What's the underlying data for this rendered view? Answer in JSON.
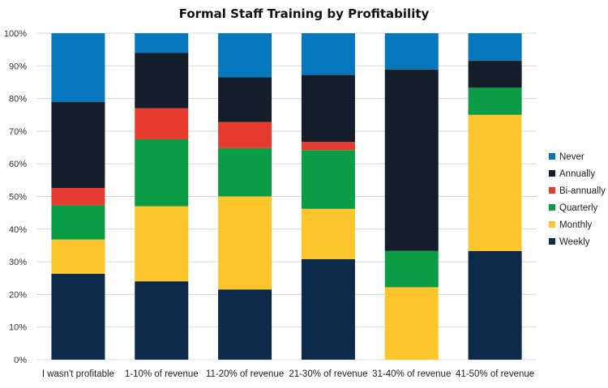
{
  "chart_data": {
    "type": "bar",
    "stacked": true,
    "title": "Formal Staff Training by Profitability",
    "xlabel": "",
    "ylabel": "",
    "ylim": [
      0,
      100
    ],
    "ytick_labels": [
      "0%",
      "10%",
      "20%",
      "30%",
      "40%",
      "50%",
      "60%",
      "70%",
      "80%",
      "90%",
      "100%"
    ],
    "grid": true,
    "legend_position": "right",
    "categories": [
      "I wasn't profitable",
      "1-10% of revenue",
      "11-20% of revenue",
      "21-30% of revenue",
      "31-40% of revenue",
      "41-50% of revenue"
    ],
    "series": [
      {
        "name": "Weekly",
        "color": "#0d2a4a",
        "values": [
          26.3,
          24.0,
          21.5,
          30.8,
          0.0,
          33.3
        ]
      },
      {
        "name": "Monthly",
        "color": "#fcc52c",
        "values": [
          10.5,
          23.0,
          28.5,
          15.4,
          22.2,
          41.7
        ]
      },
      {
        "name": "Quarterly",
        "color": "#0a9d45",
        "values": [
          10.5,
          20.5,
          14.8,
          18.0,
          11.1,
          8.3
        ]
      },
      {
        "name": "Bi-annually",
        "color": "#e63b2e",
        "values": [
          5.3,
          9.5,
          8.0,
          2.5,
          0.0,
          0.0
        ]
      },
      {
        "name": "Annually",
        "color": "#161d2a",
        "values": [
          26.3,
          17.0,
          13.7,
          20.5,
          55.6,
          8.3
        ]
      },
      {
        "name": "Never",
        "color": "#0477bd",
        "values": [
          21.1,
          6.0,
          13.5,
          12.8,
          11.1,
          8.4
        ]
      }
    ],
    "legend_order": [
      "Never",
      "Annually",
      "Bi-annually",
      "Quarterly",
      "Monthly",
      "Weekly"
    ]
  }
}
